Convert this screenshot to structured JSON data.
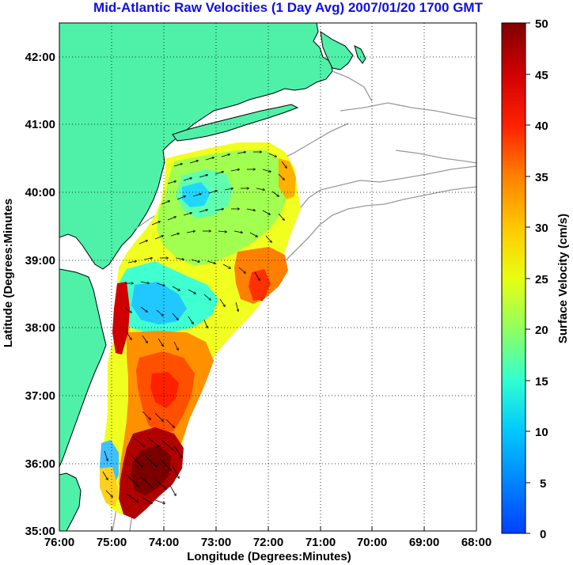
{
  "title": "Mid-Atlantic Raw Velocities (1 Day Avg) 2007/01/20 1700 GMT",
  "xlabel": "Longitude (Degrees:Minutes)",
  "ylabel": "Latitude (Degrees:Minutes",
  "colorbar": {
    "label": "Surface Velocity (cm/s)",
    "min": 0,
    "max": 50,
    "ticks": [
      "0",
      "5",
      "10",
      "15",
      "20",
      "25",
      "30",
      "35",
      "40",
      "45",
      "50"
    ]
  },
  "map": {
    "lon_range": [
      -76,
      -68
    ],
    "lat_range": [
      35,
      42.5
    ],
    "x_ticks": [
      "76:00",
      "75:00",
      "74:00",
      "73:00",
      "72:00",
      "71:00",
      "70:00",
      "69:00",
      "68:00"
    ],
    "y_ticks": [
      "35:00",
      "36:00",
      "37:00",
      "38:00",
      "39:00",
      "40:00",
      "41:00",
      "42:00"
    ],
    "grid": "dotted",
    "land_color": "#4ff0a8",
    "coast_color": "#000000",
    "bathymetry_color": "#9a9a9a",
    "colormap": "jet"
  }
}
